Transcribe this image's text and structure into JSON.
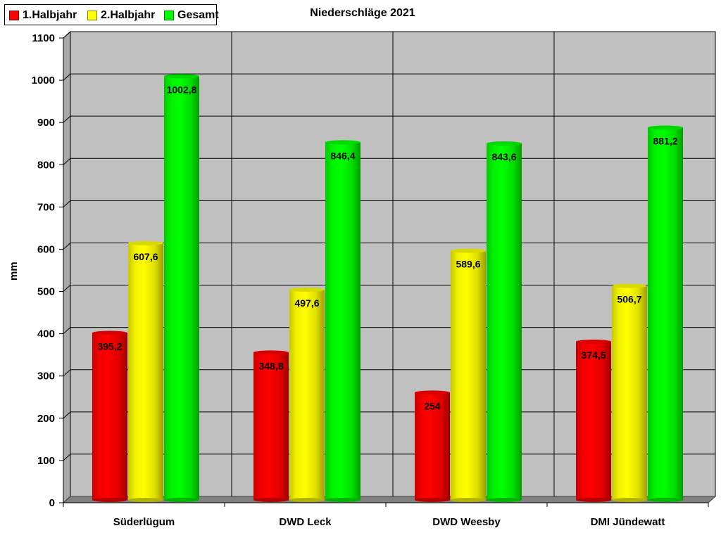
{
  "chart_data": {
    "type": "bar",
    "title": "Niederschläge 2021",
    "xlabel": "",
    "ylabel": "mm",
    "ylim": [
      0,
      1100
    ],
    "yticks": [
      0,
      100,
      200,
      300,
      400,
      500,
      600,
      700,
      800,
      900,
      1000,
      1100
    ],
    "categories": [
      "Süderlügum",
      "DWD Leck",
      "DWD Weesby",
      "DMI Jündewatt"
    ],
    "series": [
      {
        "name": "1.Halbjahr",
        "color": "#ff0000",
        "values": [
          395.2,
          348.8,
          254,
          374.5
        ],
        "labels": [
          "395,2",
          "348,8",
          "254",
          "374,5"
        ]
      },
      {
        "name": "2.Halbjahr",
        "color": "#ffff00",
        "values": [
          607.6,
          497.6,
          589.6,
          506.7
        ],
        "labels": [
          "607,6",
          "497,6",
          "589,6",
          "506,7"
        ]
      },
      {
        "name": "Gesamt",
        "color": "#00ff00",
        "values": [
          1002.8,
          846.4,
          843.6,
          881.2
        ],
        "labels": [
          "1002,8",
          "846,4",
          "843,6",
          "881,2"
        ]
      }
    ],
    "grid": true,
    "legend": "top-left",
    "background": "#c0c0c0"
  }
}
